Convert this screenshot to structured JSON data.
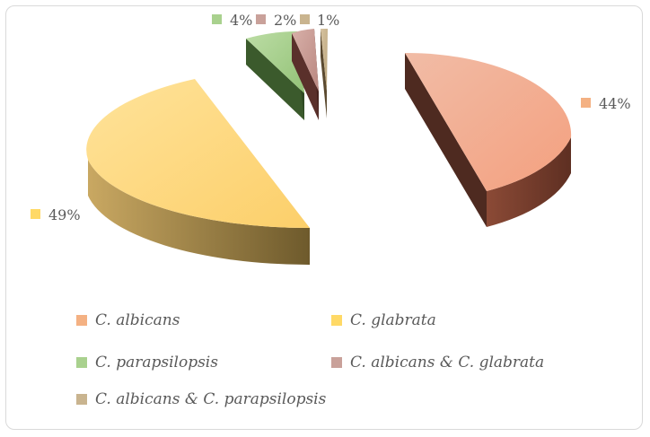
{
  "chart_data": {
    "type": "pie",
    "title": "",
    "style": "3d-exploded",
    "series": [
      {
        "name": "C. albicans",
        "value": 44,
        "label": "44%",
        "color": "#F4B183",
        "side_color": "#6E3B28"
      },
      {
        "name": "C. glabrata",
        "value": 49,
        "label": "49%",
        "color": "#FFD966",
        "side_color": "#7F6A33"
      },
      {
        "name": "C. parapsilopsis",
        "value": 4,
        "label": "4%",
        "color": "#A9D18E",
        "side_color": "#3D5C2E"
      },
      {
        "name": "C. albicans & C. glabrata",
        "value": 2,
        "label": "2%",
        "color": "#C9A19A",
        "side_color": "#5A302B"
      },
      {
        "name": "C. albicans & C. parapsilopsis",
        "value": 1,
        "label": "1%",
        "color": "#C9B48F",
        "side_color": "#5B4A30"
      }
    ],
    "legend_position": "bottom"
  }
}
